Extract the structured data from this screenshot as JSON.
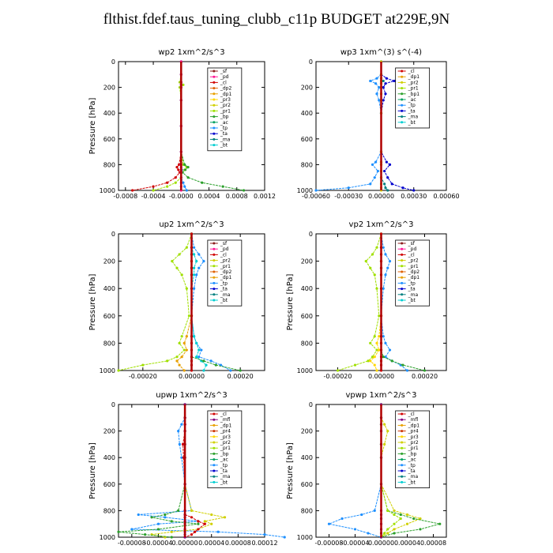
{
  "title": "flthist.fdef.taus_tuning_clubb_c11p  BUDGET at229E,9N",
  "colors": {
    "sf": "#8b1a1a",
    "pd": "#ff1493",
    "cl": "#d00000",
    "dp2": "#e06000",
    "dp1": "#e8a000",
    "pr3": "#ffd700",
    "pr2": "#d0d000",
    "pr1": "#a0e000",
    "pr4": "#cc3300",
    "bp": "#2ca02c",
    "ac": "#00a060",
    "tp": "#1e90ff",
    "ta": "#0000cd",
    "ma": "#008080",
    "bt": "#00ced1",
    "mfl": "#800080"
  },
  "chart_data": [
    {
      "type": "line",
      "title": "wp2   1xm^2/s^3",
      "ylabel": "Pressure [hPa]",
      "xlim": [
        -0.0009,
        0.0012
      ],
      "xticks": [
        -0.0008,
        -0.0004,
        0.0,
        0.0004,
        0.0008,
        0.0012
      ],
      "xticklabels": [
        "-0.0008",
        "-0.0004",
        "-0.0000",
        "0.0004",
        "0.0008",
        "0.0012"
      ],
      "ylim": [
        0,
        1000
      ],
      "yticks": [
        0,
        200,
        400,
        600,
        800,
        1000
      ],
      "legend": [
        "_sf",
        "_pd",
        "_cl",
        "_dp2",
        "_dp1",
        "_pr3",
        "_pr2",
        "_pr1",
        "_bp",
        "_ac",
        "_tp",
        "_ta",
        "_ma",
        "_bt"
      ],
      "p": [
        0,
        100,
        160,
        180,
        200,
        300,
        500,
        700,
        800,
        820,
        840,
        860,
        900,
        940,
        970,
        1000
      ],
      "series": [
        {
          "key": "pr1",
          "x": [
            0,
            0,
            -2e-05,
            3e-05,
            -2e-05,
            0,
            0,
            0,
            3e-05,
            8e-05,
            5e-05,
            1e-05,
            0,
            -8e-05,
            -0.0002,
            -0.0004
          ]
        },
        {
          "key": "bp",
          "x": [
            0,
            0,
            0,
            0,
            0,
            0,
            0,
            0,
            5e-05,
            0.0001,
            6e-05,
            2e-05,
            0.0001,
            0.0003,
            0.0006,
            0.0009
          ]
        },
        {
          "key": "cl",
          "x": [
            0,
            0,
            0,
            0,
            0,
            0,
            0,
            0,
            -3e-05,
            -6e-05,
            -4e-05,
            -2e-05,
            -8e-05,
            -0.0002,
            -0.0004,
            -0.0007
          ]
        },
        {
          "key": "tp",
          "x": [
            0,
            0,
            0,
            0,
            0,
            0,
            0,
            0,
            0,
            0,
            1e-05,
            0,
            0,
            3e-05,
            5e-05,
            8e-05
          ]
        },
        {
          "key": "pd",
          "x": [
            0,
            0,
            0,
            0,
            0,
            0,
            0,
            0,
            0,
            0,
            0,
            0,
            0,
            0,
            0,
            0
          ]
        }
      ]
    },
    {
      "type": "line",
      "title": "wp3   1xm^(3) s^(-4)",
      "ylabel": "",
      "xlim": [
        -0.0006,
        0.0006
      ],
      "xticks": [
        -0.0006,
        -0.0003,
        0.0,
        0.0003,
        0.0006
      ],
      "xticklabels": [
        "-0.00060",
        "-0.00030",
        "0.00000",
        "0.00030",
        "0.00060"
      ],
      "ylim": [
        0,
        1000
      ],
      "yticks": [
        0,
        200,
        400,
        600,
        800,
        1000
      ],
      "legend": [
        "_cl",
        "_dp1",
        "_pr2",
        "_pr1",
        "_bp1",
        "_ac",
        "_tp",
        "_ta",
        "_ma",
        "_bt"
      ],
      "p": [
        0,
        100,
        130,
        150,
        170,
        200,
        250,
        300,
        400,
        700,
        780,
        800,
        850,
        900,
        950,
        980,
        1000
      ],
      "series": [
        {
          "key": "ta",
          "x": [
            0,
            0,
            5e-05,
            0.00012,
            4e-05,
            2e-05,
            4e-05,
            2e-05,
            0,
            0,
            5e-05,
            8e-05,
            3e-05,
            6e-05,
            0.0001,
            0.0002,
            0.0003
          ]
        },
        {
          "key": "tp",
          "x": [
            0,
            0,
            -4e-05,
            -0.0001,
            -5e-05,
            -2e-05,
            -4e-05,
            -2e-05,
            0,
            0,
            -5e-05,
            -8e-05,
            -3e-05,
            -6e-05,
            -0.0001,
            -0.0003,
            -0.0006
          ]
        },
        {
          "key": "ma",
          "x": [
            0,
            0,
            0,
            2e-05,
            0,
            0,
            0,
            0,
            0,
            0,
            0,
            0,
            0,
            0,
            3e-05,
            4e-05,
            6e-05
          ]
        },
        {
          "key": "pr2",
          "x": [
            0,
            0,
            0,
            0,
            0,
            0,
            0,
            0,
            0,
            0,
            0,
            0,
            0,
            0,
            0,
            0,
            0
          ]
        }
      ]
    },
    {
      "type": "line",
      "title": "up2   1xm^2/s^3",
      "ylabel": "Pressure [hPa]",
      "xlim": [
        -0.0003,
        0.0003
      ],
      "xticks": [
        -0.0002,
        0.0,
        0.0002
      ],
      "xticklabels": [
        "-0.00020",
        "0.00000",
        "0.00020"
      ],
      "ylim": [
        0,
        1000
      ],
      "yticks": [
        0,
        200,
        400,
        600,
        800,
        1000
      ],
      "legend": [
        "_sf",
        "_pd",
        "_cl",
        "_pr2",
        "_pr1",
        "_dp2",
        "_dp1",
        "_tp",
        "_ta",
        "_ma",
        "_bt"
      ],
      "p": [
        0,
        100,
        150,
        200,
        250,
        300,
        400,
        600,
        750,
        800,
        850,
        900,
        930,
        960,
        1000
      ],
      "series": [
        {
          "key": "pr1",
          "x": [
            0,
            -2e-05,
            -5e-05,
            -8e-05,
            -6e-05,
            -4e-05,
            -2e-05,
            -1e-05,
            -4e-05,
            -5e-05,
            -3e-05,
            -6e-05,
            -0.0001,
            -0.0002,
            -0.0003
          ]
        },
        {
          "key": "tp",
          "x": [
            0,
            1e-05,
            3e-05,
            5e-05,
            3e-05,
            2e-05,
            1e-05,
            0,
            1e-05,
            2e-05,
            4e-05,
            3e-05,
            8e-05,
            0.00012,
            0.00016
          ]
        },
        {
          "key": "bt",
          "x": [
            0,
            0,
            1e-05,
            2e-05,
            1e-05,
            1e-05,
            0,
            0,
            1e-05,
            2e-05,
            3e-05,
            2e-05,
            4e-05,
            6e-05,
            5e-05
          ]
        },
        {
          "key": "dp1",
          "x": [
            0,
            0,
            0,
            0,
            0,
            0,
            0,
            0,
            -2e-05,
            -3e-05,
            -2e-05,
            -4e-05,
            -6e-05,
            -5e-05,
            -3e-05
          ]
        },
        {
          "key": "bp",
          "x": [
            0,
            0,
            0,
            0,
            0,
            0,
            0,
            0,
            0,
            0,
            0,
            0,
            5e-05,
            0.0001,
            0.0002
          ]
        },
        {
          "key": "cl",
          "x": [
            0,
            0,
            0,
            0,
            0,
            0,
            0,
            0,
            0,
            0,
            0,
            0,
            0,
            0,
            0
          ]
        }
      ]
    },
    {
      "type": "line",
      "title": "vp2   1xm^2/s^3",
      "ylabel": "Pressure [hPa]",
      "xlim": [
        -0.0003,
        0.0003
      ],
      "xticks": [
        -0.0002,
        0.0,
        0.0002
      ],
      "xticklabels": [
        "-0.00020",
        "0.00000",
        "0.00020"
      ],
      "ylim": [
        0,
        1000
      ],
      "yticks": [
        0,
        200,
        400,
        600,
        800,
        1000
      ],
      "legend": [
        "_sf",
        "_pd",
        "_cl",
        "_pr2",
        "_pr1",
        "_dp2",
        "_dp1",
        "_tp",
        "_ta",
        "_ma",
        "_bt"
      ],
      "p": [
        0,
        100,
        150,
        200,
        250,
        300,
        400,
        600,
        750,
        800,
        850,
        900,
        930,
        960,
        1000
      ],
      "series": [
        {
          "key": "pr1",
          "x": [
            0,
            -2e-05,
            -4e-05,
            -7e-05,
            -5e-05,
            -3e-05,
            -2e-05,
            -1e-05,
            -3e-05,
            -5e-05,
            -2e-05,
            -4e-05,
            -6e-05,
            -0.00012,
            -0.0002
          ]
        },
        {
          "key": "tp",
          "x": [
            0,
            1e-05,
            2e-05,
            4e-05,
            3e-05,
            2e-05,
            1e-05,
            0,
            1e-05,
            2e-05,
            4e-05,
            2e-05,
            5e-05,
            9e-05,
            0.00012
          ]
        },
        {
          "key": "pr3",
          "x": [
            0,
            0,
            0,
            0,
            0,
            0,
            0,
            0,
            -1e-05,
            -2e-05,
            -1e-05,
            -3e-05,
            -5e-05,
            -3e-05,
            -2e-05
          ]
        },
        {
          "key": "bp",
          "x": [
            0,
            0,
            0,
            0,
            0,
            0,
            0,
            0,
            0,
            0,
            0,
            1e-05,
            5e-05,
            0.0001,
            0.0002
          ]
        },
        {
          "key": "cl",
          "x": [
            0,
            0,
            0,
            0,
            0,
            0,
            0,
            0,
            0,
            0,
            0,
            0,
            0,
            0,
            0
          ]
        }
      ]
    },
    {
      "type": "line",
      "title": "upwp   1xm^2/s^3",
      "ylabel": "Pressure [hPa]",
      "xlim": [
        -0.0001,
        0.00012
      ],
      "xticks": [
        -8e-05,
        -4e-05,
        0.0,
        4e-05,
        8e-05,
        0.00012
      ],
      "xticklabels": [
        "-0.00008",
        "-0.00004",
        "0.00000",
        "0.00004",
        "0.00008",
        "0.00012"
      ],
      "ylim": [
        0,
        1000
      ],
      "yticks": [
        0,
        200,
        400,
        600,
        800,
        1000
      ],
      "legend": [
        "_cl",
        "_mfl",
        "_dp1",
        "_pr4",
        "_pr3",
        "_pr2",
        "_pr1",
        "_bp",
        "_ac",
        "_tp",
        "_ta",
        "_ma",
        "_bt"
      ],
      "p": [
        0,
        100,
        150,
        200,
        300,
        400,
        600,
        800,
        830,
        850,
        880,
        900,
        940,
        960,
        980,
        1000
      ],
      "series": [
        {
          "key": "tp",
          "x": [
            0,
            0,
            -5e-06,
            -1e-05,
            -8e-06,
            -5e-06,
            0,
            1e-05,
            -7e-05,
            -3e-05,
            2e-05,
            -4e-05,
            -8e-05,
            5e-05,
            0.00012,
            0.00015
          ]
        },
        {
          "key": "pr2",
          "x": [
            0,
            0,
            0,
            0,
            0,
            0,
            0,
            1e-05,
            4e-05,
            6e-05,
            3e-05,
            4e-05,
            2e-05,
            -2e-05,
            -5e-05,
            -3e-05
          ]
        },
        {
          "key": "bp",
          "x": [
            0,
            0,
            0,
            0,
            0,
            0,
            0,
            -1e-05,
            -3e-05,
            -5e-05,
            -2e-05,
            2e-05,
            -4e-05,
            -0.0001,
            -6e-05,
            -2e-05
          ]
        },
        {
          "key": "cl",
          "x": [
            0,
            0,
            0,
            0,
            -3e-06,
            -2e-06,
            0,
            0,
            0,
            1e-05,
            2e-05,
            3e-05,
            2e-05,
            1.5e-05,
            1e-05,
            0
          ]
        },
        {
          "key": "mfl",
          "x": [
            0,
            0,
            0,
            0,
            0,
            0,
            0,
            0,
            0,
            0,
            0,
            0,
            0,
            0,
            0,
            0
          ]
        }
      ]
    },
    {
      "type": "line",
      "title": "vpwp   1xm^2/s^3",
      "ylabel": "Pressure [hPa]",
      "xlim": [
        -0.0001,
        0.0001
      ],
      "xticks": [
        -8e-05,
        -4e-05,
        0.0,
        4e-05,
        8e-05
      ],
      "xticklabels": [
        "-0.00008",
        "-0.00004",
        "0.00000",
        "0.00004",
        "0.00008"
      ],
      "ylim": [
        0,
        1000
      ],
      "yticks": [
        0,
        200,
        400,
        600,
        800,
        1000
      ],
      "legend": [
        "_cl",
        "_mfl",
        "_dp1",
        "_pr4",
        "_pr3",
        "_pr2",
        "_pr1",
        "_bp",
        "_ac",
        "_tp",
        "_ta",
        "_ma",
        "_bt"
      ],
      "p": [
        0,
        100,
        150,
        200,
        300,
        400,
        600,
        800,
        830,
        860,
        900,
        940,
        970,
        1000
      ],
      "series": [
        {
          "key": "pr2",
          "x": [
            0,
            0,
            5e-06,
            1e-05,
            5e-06,
            0,
            0,
            2e-05,
            4e-05,
            6e-05,
            4e-05,
            2e-05,
            1e-05,
            0
          ]
        },
        {
          "key": "tp",
          "x": [
            0,
            0,
            0,
            0,
            0,
            0,
            0,
            -1e-05,
            -3e-05,
            -6e-05,
            -8e-05,
            -4e-05,
            -2e-05,
            0
          ]
        },
        {
          "key": "bp",
          "x": [
            0,
            0,
            0,
            0,
            0,
            0,
            0,
            1e-05,
            3e-05,
            5e-05,
            9e-05,
            6e-05,
            2e-05,
            0
          ]
        },
        {
          "key": "pr1",
          "x": [
            0,
            0,
            0,
            0,
            0,
            0,
            0,
            1e-05,
            2e-05,
            3e-05,
            2e-05,
            1e-05,
            5e-06,
            0
          ]
        },
        {
          "key": "mfl",
          "x": [
            0,
            0,
            0,
            0,
            0,
            0,
            0,
            0,
            0,
            0,
            0,
            0,
            0,
            0
          ]
        }
      ]
    }
  ]
}
